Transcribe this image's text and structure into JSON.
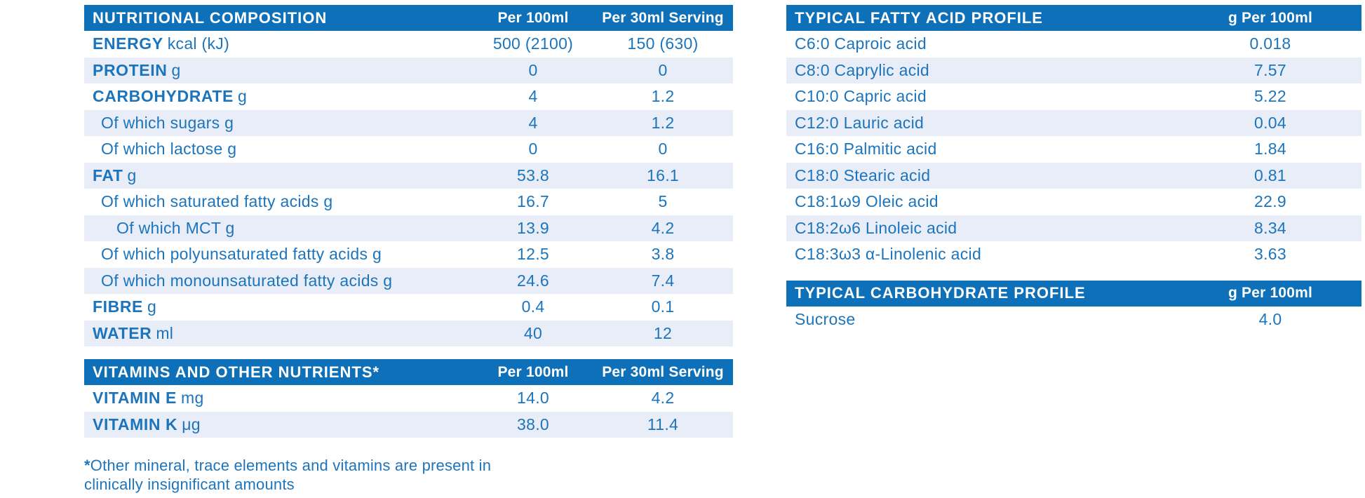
{
  "colors": {
    "header_bg": "#0D70B8",
    "row_alt_bg": "#E9EDF7",
    "text_blue": "#1C75BC",
    "header_text": "#FFFFFF"
  },
  "nutritional_composition": {
    "title": "NUTRITIONAL COMPOSITION",
    "col_per100": "Per 100ml",
    "col_per30": "Per 30ml Serving",
    "rows": [
      {
        "label": "ENERGY",
        "unit": "kcal (kJ)",
        "bold": true,
        "indent": 0,
        "per100": "500 (2100)",
        "per30": "150 (630)"
      },
      {
        "label": "PROTEIN",
        "unit": "g",
        "bold": true,
        "indent": 0,
        "per100": "0",
        "per30": "0"
      },
      {
        "label": "CARBOHYDRATE",
        "unit": "g",
        "bold": true,
        "indent": 0,
        "per100": "4",
        "per30": "1.2"
      },
      {
        "label": "Of which sugars g",
        "unit": "",
        "bold": false,
        "indent": 1,
        "per100": "4",
        "per30": "1.2"
      },
      {
        "label": "Of which lactose g",
        "unit": "",
        "bold": false,
        "indent": 1,
        "per100": "0",
        "per30": "0"
      },
      {
        "label": "FAT",
        "unit": "g",
        "bold": true,
        "indent": 0,
        "per100": "53.8",
        "per30": "16.1"
      },
      {
        "label": "Of which saturated fatty acids g",
        "unit": "",
        "bold": false,
        "indent": 1,
        "per100": "16.7",
        "per30": "5"
      },
      {
        "label": "Of which MCT g",
        "unit": "",
        "bold": false,
        "indent": 2,
        "per100": "13.9",
        "per30": "4.2"
      },
      {
        "label": "Of which polyunsaturated fatty acids g",
        "unit": "",
        "bold": false,
        "indent": 1,
        "per100": "12.5",
        "per30": "3.8"
      },
      {
        "label": "Of which monounsaturated fatty acids g",
        "unit": "",
        "bold": false,
        "indent": 1,
        "per100": "24.6",
        "per30": "7.4"
      },
      {
        "label": "FIBRE",
        "unit": "g",
        "bold": true,
        "indent": 0,
        "per100": "0.4",
        "per30": "0.1"
      },
      {
        "label": "WATER",
        "unit": "ml",
        "bold": true,
        "indent": 0,
        "per100": "40",
        "per30": "12"
      }
    ]
  },
  "vitamins": {
    "title": "VITAMINS AND OTHER NUTRIENTS*",
    "col_per100": "Per 100ml",
    "col_per30": "Per 30ml Serving",
    "rows": [
      {
        "label": "VITAMIN E",
        "unit": "mg",
        "bold": true,
        "indent": 0,
        "per100": "14.0",
        "per30": "4.2"
      },
      {
        "label": "VITAMIN K",
        "unit": "μg",
        "bold": true,
        "indent": 0,
        "per100": "38.0",
        "per30": "11.4"
      }
    ]
  },
  "footnote": {
    "marker": "*",
    "text": "Other mineral, trace elements and vitamins are present in clinically insignificant amounts"
  },
  "fatty_acid_profile": {
    "title": "TYPICAL FATTY ACID PROFILE",
    "col_value": "g Per 100ml",
    "rows": [
      {
        "label": "C6:0 Caproic acid",
        "value": "0.018"
      },
      {
        "label": "C8:0 Caprylic acid",
        "value": "7.57"
      },
      {
        "label": "C10:0 Capric acid",
        "value": "5.22"
      },
      {
        "label": "C12:0 Lauric acid",
        "value": "0.04"
      },
      {
        "label": "C16:0 Palmitic acid",
        "value": "1.84"
      },
      {
        "label": "C18:0 Stearic acid",
        "value": "0.81"
      },
      {
        "label": "C18:1ω9 Oleic acid",
        "value": "22.9"
      },
      {
        "label": "C18:2ω6 Linoleic acid",
        "value": "8.34"
      },
      {
        "label": "C18:3ω3 α-Linolenic acid",
        "value": "3.63"
      }
    ]
  },
  "carbohydrate_profile": {
    "title": "TYPICAL CARBOHYDRATE PROFILE",
    "col_value": "g Per 100ml",
    "rows": [
      {
        "label": "Sucrose",
        "value": "4.0"
      }
    ]
  }
}
